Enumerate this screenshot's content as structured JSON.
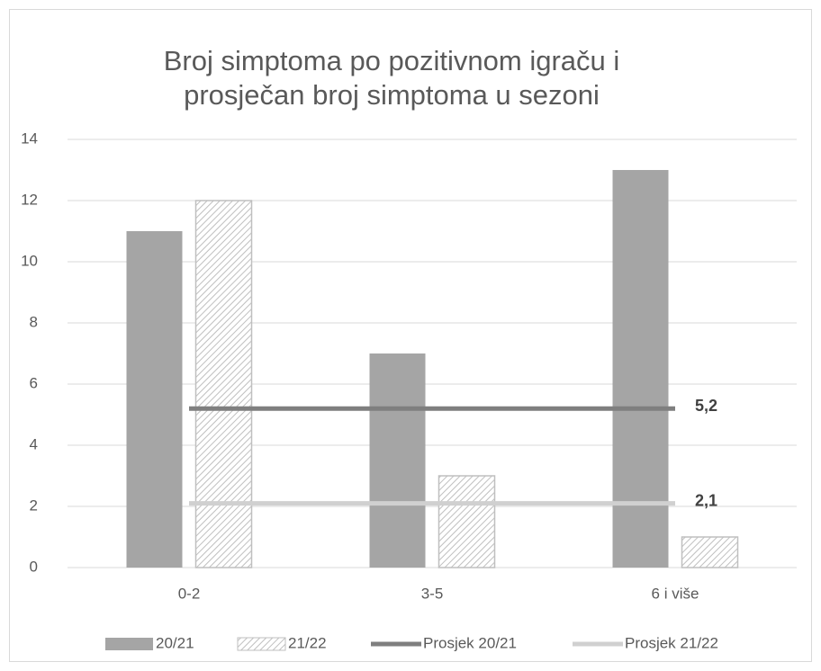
{
  "chart_data": {
    "type": "bar",
    "title": [
      "Broj simptoma po pozitivnom igraču i",
      "prosječan broj simptoma u sezoni"
    ],
    "categories": [
      "0-2",
      "3-5",
      "6 i više"
    ],
    "series": [
      {
        "name": "20/21",
        "type": "bar",
        "color": "#a5a5a5",
        "values": [
          11,
          7,
          13
        ]
      },
      {
        "name": "21/22",
        "type": "bar",
        "color": "#bfbfbf",
        "hatched": true,
        "values": [
          12,
          3,
          1
        ]
      },
      {
        "name": "Prosjek 20/21",
        "type": "line",
        "color": "#7f7f7f",
        "values": [
          5.2,
          5.2,
          5.2
        ],
        "value_labels": [
          null,
          null,
          "5,2"
        ]
      },
      {
        "name": "Prosjek 21/22",
        "type": "line",
        "color": "#d0d0d0",
        "values": [
          2.1,
          2.1,
          2.1
        ],
        "value_labels": [
          null,
          null,
          "2,1"
        ]
      }
    ],
    "ylim": [
      0,
      14
    ],
    "yticks": [
      0,
      2,
      4,
      6,
      8,
      10,
      12,
      14
    ],
    "grid": true,
    "legend": "bottom"
  }
}
